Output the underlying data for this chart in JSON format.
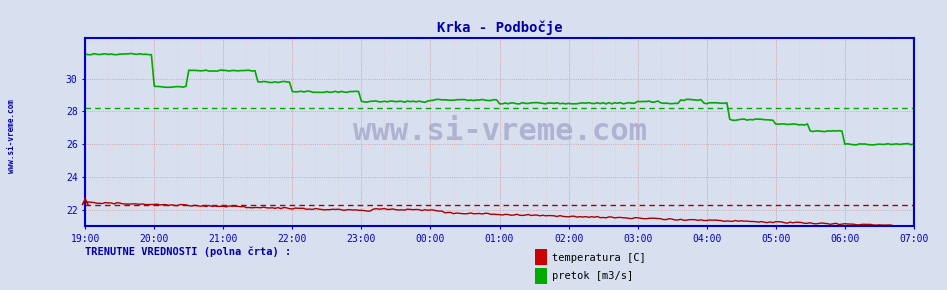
{
  "title": "Krka - Podbočje",
  "title_color": "#0000aa",
  "bg_color": "#d8e0f0",
  "plot_bg_color": "#d8e0f0",
  "ylim": [
    21.0,
    32.5
  ],
  "yticks": [
    22,
    24,
    26,
    28,
    30
  ],
  "xtick_labels": [
    "19:00",
    "20:00",
    "21:00",
    "22:00",
    "23:00",
    "00:00",
    "01:00",
    "02:00",
    "03:00",
    "04:00",
    "05:00",
    "06:00",
    "07:00"
  ],
  "n_points": 289,
  "temp_color": "#aa0000",
  "flow_color": "#00aa00",
  "temp_avg": 22.3,
  "flow_avg": 28.2,
  "axis_color": "#0000cc",
  "grid_color_major": "#cc9999",
  "grid_color_minor": "#e8c0c0",
  "watermark": "www.si-vreme.com",
  "watermark_color": "#aaaacc",
  "legend_label1": "temperatura [C]",
  "legend_label2": "pretok [m3/s]",
  "legend_label1_color": "#cc0000",
  "legend_label2_color": "#00aa00",
  "bottom_text": "TRENUTNE VREDNOSTI (polna črta) :",
  "bottom_text_color": "#0000aa",
  "sidebar_text": "www.si-vreme.com",
  "sidebar_color": "#0000aa"
}
